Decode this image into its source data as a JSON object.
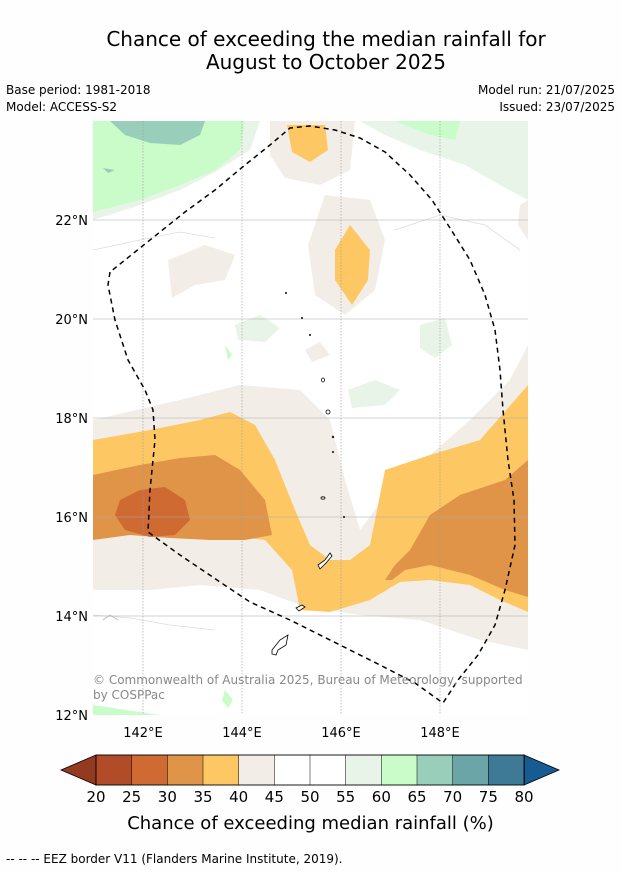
{
  "title": {
    "line1": "Chance of exceeding the median rainfall for",
    "line2": "August to October 2025"
  },
  "meta": {
    "base_period": "Base period: 1981-2018",
    "model": "Model: ACCESS-S2",
    "model_run": "Model run: 21/07/2025",
    "issued": "Issued: 23/07/2025"
  },
  "map": {
    "lat_labels": [
      "22°N",
      "20°N",
      "18°N",
      "16°N",
      "14°N",
      "12°N"
    ],
    "lon_labels": [
      "142°E",
      "144°E",
      "146°E",
      "148°E"
    ],
    "copyright": "© Commonwealth of Australia 2025, Bureau of Meteorology, supported by COSPPac",
    "copyright_line1": "© Commonwealth of Australia 2025, Bureau of Meteorology, supported",
    "copyright_line2": "by COSPPac"
  },
  "colorbar": {
    "ticks": [
      "20",
      "25",
      "30",
      "35",
      "40",
      "45",
      "50",
      "55",
      "60",
      "65",
      "70",
      "75",
      "80"
    ],
    "colors": [
      "#b24b28",
      "#cf6a33",
      "#e09448",
      "#fdc864",
      "#f2ede7",
      "#ffffff",
      "#ffffff",
      "#e8f4e8",
      "#c9fcc9",
      "#99cfba",
      "#6ba5a8",
      "#3e7a96"
    ],
    "low_extend_color": "#933a20",
    "high_extend_color": "#175b93",
    "label": "Chance of exceeding median rainfall (%)"
  },
  "footer": {
    "eez_legend": "--  --  -- EEZ border V11 (Flanders Marine Institute, 2019)."
  }
}
